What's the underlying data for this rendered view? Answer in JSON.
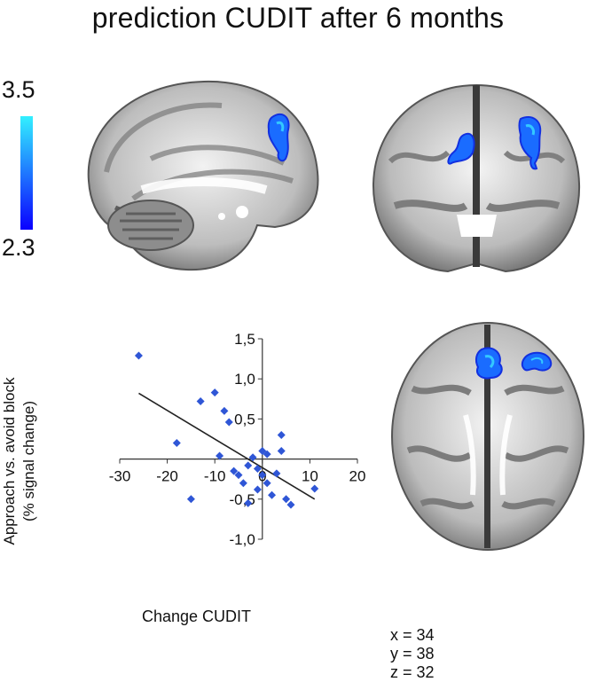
{
  "title": "prediction CUDIT after 6 months",
  "colorbar": {
    "max_label": "3.5",
    "min_label": "2.3",
    "top_color": "#33f0ff",
    "bottom_color": "#0a00ff"
  },
  "coordinates": {
    "x": "x = 34",
    "y": "y = 38",
    "z": "z = 32"
  },
  "chart_data": {
    "type": "scatter",
    "title": "",
    "xlabel": "Change CUDIT",
    "ylabel_line1": "Approach vs. avoid block",
    "ylabel_line2": "(% signal change)",
    "xlim": [
      -30,
      20
    ],
    "ylim": [
      -1.0,
      1.5
    ],
    "xticks": [
      -30,
      -20,
      -10,
      0,
      10,
      20
    ],
    "xtick_labels": [
      "-30",
      "-20",
      "-10",
      "0",
      "10",
      "20"
    ],
    "yticks": [
      -1.0,
      -0.5,
      0.5,
      1.0,
      1.5
    ],
    "ytick_labels": [
      "-1,0",
      "-0,5",
      "0,5",
      "1,0",
      "1,5"
    ],
    "grid": false,
    "marker": "diamond",
    "marker_color": "#2f56d6",
    "points": [
      {
        "x": -26,
        "y": 1.29
      },
      {
        "x": -18,
        "y": 0.2
      },
      {
        "x": -15,
        "y": -0.5
      },
      {
        "x": -13,
        "y": 0.72
      },
      {
        "x": -10,
        "y": 0.83
      },
      {
        "x": -9,
        "y": 0.04
      },
      {
        "x": -8,
        "y": 0.6
      },
      {
        "x": -7,
        "y": 0.46
      },
      {
        "x": -6,
        "y": -0.15
      },
      {
        "x": -5,
        "y": -0.2
      },
      {
        "x": -4,
        "y": -0.3
      },
      {
        "x": -3,
        "y": -0.55
      },
      {
        "x": -3,
        "y": -0.08
      },
      {
        "x": -2,
        "y": 0.02
      },
      {
        "x": -1,
        "y": -0.12
      },
      {
        "x": -1,
        "y": -0.38
      },
      {
        "x": 0,
        "y": 0.1
      },
      {
        "x": 0,
        "y": -0.2
      },
      {
        "x": 1,
        "y": 0.06
      },
      {
        "x": 1,
        "y": -0.3
      },
      {
        "x": 2,
        "y": -0.45
      },
      {
        "x": 3,
        "y": -0.18
      },
      {
        "x": 4,
        "y": 0.3
      },
      {
        "x": 4,
        "y": 0.1
      },
      {
        "x": 5,
        "y": -0.5
      },
      {
        "x": 6,
        "y": -0.57
      },
      {
        "x": 11,
        "y": -0.37
      }
    ],
    "trendline": {
      "x": [
        -26,
        11
      ],
      "y": [
        0.82,
        -0.5
      ],
      "color": "#222222"
    }
  }
}
